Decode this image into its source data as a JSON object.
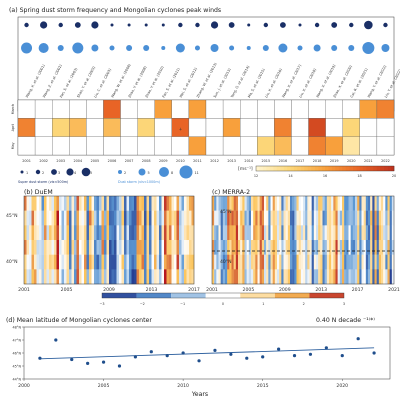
{
  "panel_a": {
    "title": "(a) Spring dust storm frequency and Mongolian cyclones peak winds",
    "years": [
      "2001",
      "2002",
      "2003",
      "2004",
      "2005",
      "2006",
      "2007",
      "2008",
      "2009",
      "2010",
      "2011",
      "2012",
      "2013",
      "2014",
      "2015",
      "2016",
      "2017",
      "2018",
      "2019",
      "2020",
      "2021",
      "2022"
    ],
    "row_labels": [
      "March",
      "April",
      "May"
    ],
    "super_dust_size_legend": [
      "1",
      "2",
      "3",
      "4",
      "5"
    ],
    "dust_size_legend": [
      "2",
      "5",
      "8",
      "11"
    ],
    "super_dust_label": "Super dust storm (vis<500m)",
    "dust_label": "Dust storm (vis<1000m)",
    "unit": "[ms⁻¹]",
    "wind_ticks": [
      "12",
      "14",
      "16",
      "18",
      "20"
    ],
    "references": [
      "Wang, X. et al. (2001)",
      "Wang, Z. et al. (2002)",
      "Fan, S. et al. (2003)",
      "Shao, Y. et al. (2003)",
      "Liu, C. et al. (2005)",
      "Wang, W. et al. (2006)",
      "Zhao, Y. et al. (2008)",
      "Zhao, Y. et al. (2010)",
      "Fan, S. et al. (2011)",
      "Wei, S. et al. (2012)",
      "Zhang, W. et al. (2013)",
      "Sun, J. et al. (2013)",
      "Yang, G. et al. (2014)",
      "Ma, S. et al. (2015)",
      "Liu, X. et al. (2016)",
      "Wang, X. et al. (2017)",
      "Liu, X. et al. (2018)",
      "Wang, X. et al. (2019)",
      "Zhao, X. et al. (2020)",
      "Cai, R. et al. (2021)",
      "Wang, Y. et al. (2022)",
      "Liu, Y. et al. (2022)"
    ]
  },
  "panel_b": {
    "title": "(b) DuEM",
    "ylabels": [
      "45°N",
      "40°N"
    ],
    "xlabels": [
      "2001",
      "2005",
      "2009",
      "2013",
      "2017"
    ]
  },
  "panel_c": {
    "title": "(c) MERRA-2",
    "ylabels": [
      "45°N",
      "40°N"
    ],
    "xlabels": [
      "2001",
      "2005",
      "2009",
      "2013",
      "2017",
      "2021"
    ]
  },
  "anomaly_ticks": [
    "−3",
    "−2",
    "−1",
    "0",
    "1",
    "2",
    "3"
  ],
  "panel_d": {
    "title": "(d) Mean latitude of Mongolian cyclones center",
    "trend_label": "0.40 N decade ⁻¹⁽*⁾",
    "xlabel": "Years"
  },
  "colors": {
    "accent": "#2c5f9e",
    "warm": "#e8672a",
    "cool": "#3d78b8"
  },
  "chart_data": [
    {
      "type": "scatter",
      "name": "panel-a-super-dust-storms",
      "x": [
        2001,
        2002,
        2003,
        2004,
        2005,
        2006,
        2007,
        2008,
        2009,
        2010,
        2011,
        2012,
        2013,
        2014,
        2015,
        2016,
        2017,
        2018,
        2019,
        2020,
        2021,
        2022
      ],
      "values": [
        2,
        4,
        2,
        3,
        4,
        1,
        1,
        1,
        1,
        2,
        2,
        4,
        3,
        1,
        2,
        3,
        1,
        2,
        3,
        2,
        5,
        2
      ]
    },
    {
      "type": "scatter",
      "name": "panel-a-dust-storms",
      "x": [
        2001,
        2002,
        2003,
        2004,
        2005,
        2006,
        2007,
        2008,
        2009,
        2010,
        2011,
        2012,
        2013,
        2014,
        2015,
        2016,
        2017,
        2018,
        2019,
        2020,
        2021,
        2022
      ],
      "values": [
        9,
        8,
        4,
        9,
        5,
        3,
        4,
        4,
        2,
        7,
        3,
        6,
        3,
        2,
        4,
        7,
        3,
        5,
        4,
        4,
        10,
        6
      ]
    },
    {
      "type": "heatmap",
      "name": "panel-a-peak-winds",
      "rows": [
        "March",
        "April",
        "May"
      ],
      "x": [
        2001,
        2002,
        2003,
        2004,
        2005,
        2006,
        2007,
        2008,
        2009,
        2010,
        2011,
        2012,
        2013,
        2014,
        2015,
        2016,
        2017,
        2018,
        2019,
        2020,
        2021,
        2022
      ],
      "values": [
        [
          null,
          null,
          null,
          null,
          null,
          18,
          null,
          null,
          16,
          null,
          16,
          null,
          null,
          null,
          null,
          null,
          null,
          null,
          null,
          null,
          16,
          17
        ],
        [
          17,
          null,
          14,
          15,
          null,
          15,
          null,
          14,
          null,
          18,
          null,
          null,
          16,
          null,
          null,
          17,
          null,
          19,
          null,
          14,
          null,
          null
        ],
        [
          null,
          null,
          null,
          null,
          null,
          null,
          null,
          null,
          null,
          null,
          16,
          null,
          null,
          null,
          14,
          15,
          null,
          17,
          16,
          13,
          null,
          null
        ]
      ],
      "colorbar_range": [
        12,
        20
      ]
    },
    {
      "type": "line",
      "name": "panel-d-mean-latitude",
      "x": [
        2001,
        2002,
        2003,
        2004,
        2005,
        2006,
        2007,
        2008,
        2009,
        2010,
        2011,
        2012,
        2013,
        2014,
        2015,
        2016,
        2017,
        2018,
        2019,
        2020,
        2021,
        2022
      ],
      "values": [
        45.6,
        47.0,
        45.5,
        45.2,
        45.3,
        45.0,
        45.7,
        46.1,
        45.8,
        46.0,
        45.4,
        46.2,
        45.9,
        45.6,
        45.7,
        46.3,
        45.8,
        45.9,
        46.4,
        45.8,
        47.1,
        46.0
      ],
      "trend": [
        45.55,
        46.4
      ],
      "xticks": [
        2000,
        2005,
        2010,
        2015,
        2020
      ],
      "yticks": [
        44,
        45,
        46,
        47,
        48
      ],
      "ylim": [
        44,
        48
      ],
      "xlabel": "Years"
    }
  ]
}
